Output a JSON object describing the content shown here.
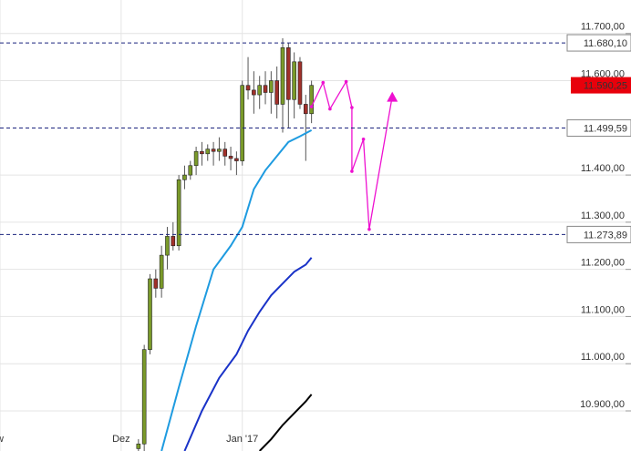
{
  "chart_data": {
    "type": "candlestick",
    "xlim": [
      -21,
      77
    ],
    "ylim": [
      10815,
      11771
    ],
    "grid": true,
    "xticks": [
      {
        "value": -21,
        "label": "w"
      },
      {
        "value": 0,
        "label": "Dez"
      },
      {
        "value": 21,
        "label": "Jan '17"
      }
    ],
    "yticks": [
      {
        "value": 11700,
        "label": "11.700,00"
      },
      {
        "value": 11600,
        "label": "11.600,00"
      },
      {
        "value": 11400,
        "label": "11.400,00"
      },
      {
        "value": 11300,
        "label": "11.300,00"
      },
      {
        "value": 11200,
        "label": "11.200,00"
      },
      {
        "value": 11100,
        "label": "11.100,00"
      },
      {
        "value": 11000,
        "label": "11.000,00"
      },
      {
        "value": 10900,
        "label": "10.900,00"
      }
    ],
    "levels": [
      {
        "value": 11680.1,
        "label": "11.680,10",
        "color": "#1a237e"
      },
      {
        "value": 11499.59,
        "label": "11.499,59",
        "color": "#1a237e"
      },
      {
        "value": 11273.89,
        "label": "11.273,89",
        "color": "#1a237e"
      }
    ],
    "current": {
      "value": 11590.25,
      "label": "11.590,25",
      "color": "#e8000b"
    },
    "up_color": "#7a9a2a",
    "down_color": "#a0302a",
    "candles": {
      "x": [
        3,
        4,
        5,
        6,
        7,
        8,
        9,
        10,
        11,
        12,
        13,
        14,
        15,
        16,
        17,
        18,
        19,
        20,
        21,
        22,
        23,
        24,
        25,
        26,
        27,
        28,
        29,
        30,
        31,
        32,
        33
      ],
      "open": [
        10820,
        10830,
        11030,
        11180,
        11160,
        11230,
        11270,
        11250,
        11390,
        11400,
        11420,
        11450,
        11445,
        11455,
        11450,
        11455,
        11440,
        11435,
        11430,
        11590,
        11580,
        11570,
        11590,
        11575,
        11600,
        11550,
        11670,
        11560,
        11640,
        11550,
        11530
      ],
      "high": [
        10840,
        11040,
        11190,
        11200,
        11250,
        11290,
        11300,
        11400,
        11420,
        11430,
        11460,
        11470,
        11465,
        11470,
        11480,
        11470,
        11460,
        11450,
        11600,
        11650,
        11620,
        11610,
        11620,
        11620,
        11630,
        11690,
        11680,
        11660,
        11650,
        11570,
        11600
      ],
      "low": [
        10815,
        10815,
        11020,
        11140,
        11140,
        11200,
        11240,
        11240,
        11370,
        11390,
        11400,
        11420,
        11430,
        11420,
        11430,
        11420,
        11410,
        11400,
        11420,
        11560,
        11530,
        11540,
        11550,
        11530,
        11520,
        11490,
        11500,
        11520,
        11540,
        11430,
        11510
      ],
      "close": [
        10830,
        11030,
        11180,
        11160,
        11230,
        11270,
        11250,
        11390,
        11400,
        11420,
        11450,
        11445,
        11455,
        11450,
        11455,
        11440,
        11435,
        11430,
        11590,
        11580,
        11570,
        11590,
        11575,
        11600,
        11550,
        11670,
        11560,
        11640,
        11550,
        11530,
        11590
      ]
    },
    "series": [
      {
        "color": "#1e9be0",
        "x": [
          7,
          10,
          13,
          16,
          19,
          21,
          23,
          25,
          27,
          29,
          31,
          33
        ],
        "values": [
          10815,
          10950,
          11080,
          11200,
          11250,
          11290,
          11370,
          11410,
          11440,
          11470,
          11482,
          11495
        ]
      },
      {
        "color": "#1a33c8",
        "x": [
          11,
          14,
          17,
          20,
          22,
          24,
          26,
          28,
          30,
          32,
          33
        ],
        "values": [
          10815,
          10900,
          10970,
          11020,
          11070,
          11110,
          11145,
          11170,
          11195,
          11210,
          11225
        ]
      },
      {
        "color": "#000000",
        "x": [
          24,
          26,
          28,
          30,
          32,
          33
        ],
        "values": [
          10815,
          10840,
          10870,
          10895,
          10920,
          10935
        ]
      },
      {
        "color": "#ee10d0",
        "x": [
          33,
          35,
          36.2,
          39,
          40,
          40,
          42,
          43,
          47
        ],
        "values": [
          11545,
          11596,
          11540,
          11598,
          11543,
          11408,
          11476,
          11285,
          11567
        ],
        "arrow": true
      }
    ]
  }
}
